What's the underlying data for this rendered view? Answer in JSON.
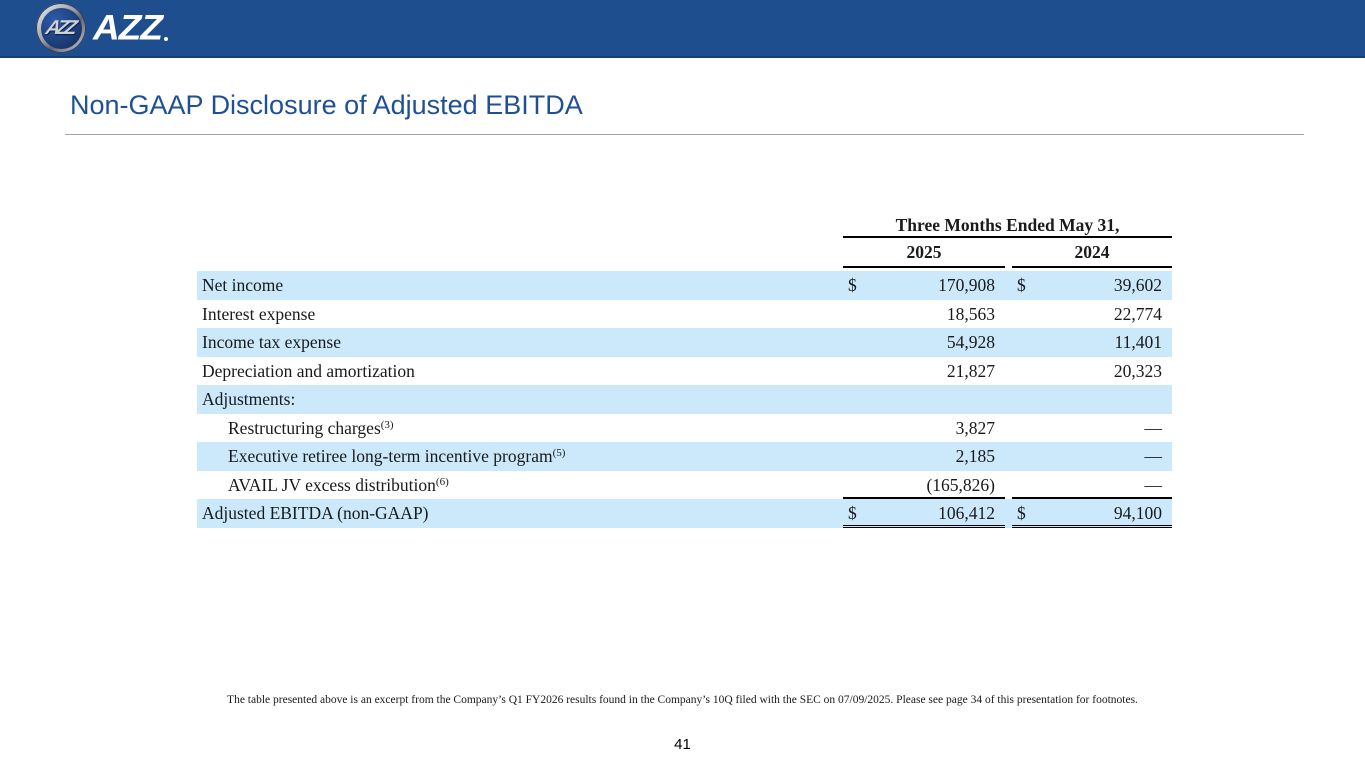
{
  "colors": {
    "header_bar_blue": "#1F4E8F",
    "title_blue": "#1F5096",
    "row_shade_blue": "#CBE9FB",
    "rule_black": "#000000"
  },
  "header": {
    "logo_text": "AZZ",
    "logo_monogram": "AZZ"
  },
  "page": {
    "title": "Non-GAAP Disclosure of Adjusted EBITDA",
    "footnote": "The table presented above is an excerpt from the Company’s Q1 FY2026 results found in the Company’s 10Q filed with the SEC on 07/09/2025. Please see page 34 of this presentation for footnotes.",
    "number": "41"
  },
  "table": {
    "col_group_header": "Three Months Ended May 31,",
    "columns": [
      "2025",
      "2024"
    ],
    "rows": [
      {
        "label": "Net income",
        "sup": "",
        "indent": false,
        "shaded": true,
        "dollar": true,
        "values": [
          "170,908",
          "39,602"
        ],
        "rule_bottom": false,
        "total": false
      },
      {
        "label": "Interest expense",
        "sup": "",
        "indent": false,
        "shaded": false,
        "dollar": false,
        "values": [
          "18,563",
          "22,774"
        ],
        "rule_bottom": false,
        "total": false
      },
      {
        "label": "Income tax expense",
        "sup": "",
        "indent": false,
        "shaded": true,
        "dollar": false,
        "values": [
          "54,928",
          "11,401"
        ],
        "rule_bottom": false,
        "total": false
      },
      {
        "label": "Depreciation and amortization",
        "sup": "",
        "indent": false,
        "shaded": false,
        "dollar": false,
        "values": [
          "21,827",
          "20,323"
        ],
        "rule_bottom": false,
        "total": false
      },
      {
        "label": "Adjustments:",
        "sup": "",
        "indent": false,
        "shaded": true,
        "dollar": false,
        "values": [
          "",
          ""
        ],
        "rule_bottom": false,
        "total": false
      },
      {
        "label": "Restructuring charges",
        "sup": "(3)",
        "indent": true,
        "shaded": false,
        "dollar": false,
        "values": [
          "3,827",
          "—"
        ],
        "rule_bottom": false,
        "total": false
      },
      {
        "label": "Executive retiree long-term incentive program",
        "sup": "(5)",
        "indent": true,
        "shaded": true,
        "dollar": false,
        "values": [
          "2,185",
          "—"
        ],
        "rule_bottom": false,
        "total": false
      },
      {
        "label": "AVAIL JV excess distribution",
        "sup": "(6)",
        "indent": true,
        "shaded": false,
        "dollar": false,
        "values": [
          "(165,826)",
          "—"
        ],
        "rule_bottom": true,
        "total": false
      },
      {
        "label": "Adjusted EBITDA (non-GAAP)",
        "sup": "",
        "indent": false,
        "shaded": true,
        "dollar": true,
        "values": [
          "106,412",
          "94,100"
        ],
        "rule_bottom": false,
        "total": true
      }
    ]
  }
}
